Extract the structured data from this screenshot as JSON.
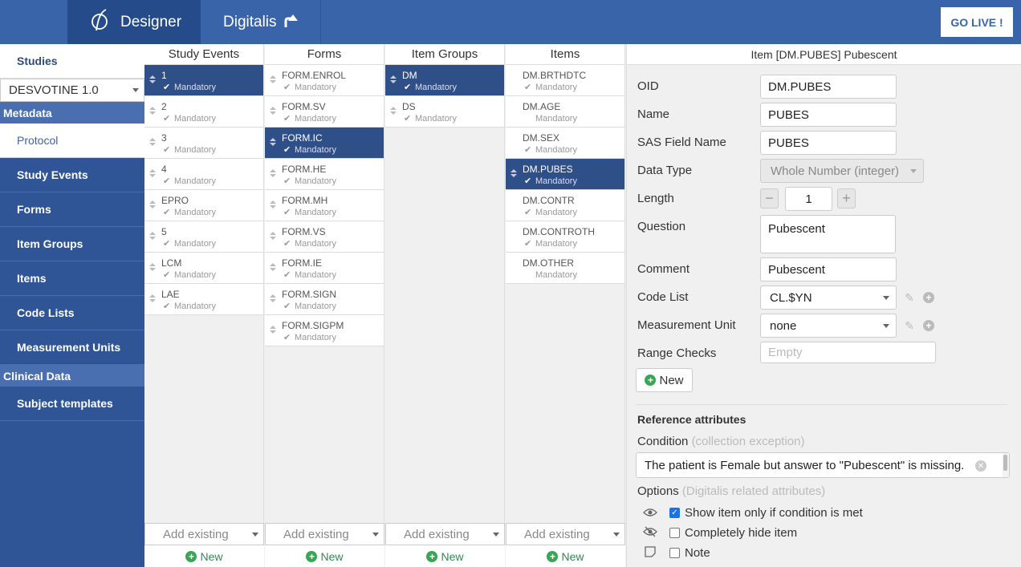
{
  "topbar": {
    "designer_label": "Designer",
    "digitalis_label": "Digitalis",
    "golive_label": "GO LIVE !"
  },
  "sidebar": {
    "studies_label": "Studies",
    "study_select": "DESVOTINE 1.0",
    "metadata_heading": "Metadata",
    "metadata_items": [
      "Protocol",
      "Study Events",
      "Forms",
      "Item Groups",
      "Items",
      "Code Lists",
      "Measurement Units"
    ],
    "clinical_heading": "Clinical Data",
    "clinical_items": [
      "Subject templates"
    ]
  },
  "columns": [
    {
      "title": "Study Events",
      "rows": [
        {
          "name": "1",
          "sub": "Mandatory",
          "selected": true
        },
        {
          "name": "2",
          "sub": "Mandatory"
        },
        {
          "name": "3",
          "sub": "Mandatory"
        },
        {
          "name": "4",
          "sub": "Mandatory"
        },
        {
          "name": "EPRO",
          "sub": "Mandatory"
        },
        {
          "name": "5",
          "sub": "Mandatory"
        },
        {
          "name": "LCM",
          "sub": "Mandatory"
        },
        {
          "name": "LAE",
          "sub": "Mandatory"
        }
      ],
      "add_existing": "Add existing",
      "new_label": "New"
    },
    {
      "title": "Forms",
      "rows": [
        {
          "name": "FORM.ENROL",
          "sub": "Mandatory"
        },
        {
          "name": "FORM.SV",
          "sub": "Mandatory"
        },
        {
          "name": "FORM.IC",
          "sub": "Mandatory",
          "selected": true
        },
        {
          "name": "FORM.HE",
          "sub": "Mandatory"
        },
        {
          "name": "FORM.MH",
          "sub": "Mandatory"
        },
        {
          "name": "FORM.VS",
          "sub": "Mandatory"
        },
        {
          "name": "FORM.IE",
          "sub": "Mandatory"
        },
        {
          "name": "FORM.SIGN",
          "sub": "Mandatory"
        },
        {
          "name": "FORM.SIGPM",
          "sub": "Mandatory"
        }
      ],
      "add_existing": "Add existing",
      "new_label": "New"
    },
    {
      "title": "Item Groups",
      "rows": [
        {
          "name": "DM",
          "sub": "Mandatory",
          "selected": true
        },
        {
          "name": "DS",
          "sub": "Mandatory"
        }
      ],
      "add_existing": "Add existing",
      "new_label": "New"
    },
    {
      "title": "Items",
      "rows": [
        {
          "name": "DM.BRTHDTC",
          "sub": "Mandatory",
          "check": true
        },
        {
          "name": "DM.AGE",
          "sub": "Mandatory",
          "check": false
        },
        {
          "name": "DM.SEX",
          "sub": "Mandatory",
          "check": true
        },
        {
          "name": "DM.PUBES",
          "sub": "Mandatory",
          "selected": true,
          "check": true
        },
        {
          "name": "DM.CONTR",
          "sub": "Mandatory",
          "check": true
        },
        {
          "name": "DM.CONTROTH",
          "sub": "Mandatory",
          "check": true
        },
        {
          "name": "DM.OTHER",
          "sub": "Mandatory",
          "check": false
        }
      ],
      "add_existing": "Add existing",
      "new_label": "New"
    }
  ],
  "panel": {
    "title": "Item [DM.PUBES] Pubescent",
    "oid_label": "OID",
    "oid_value": "DM.PUBES",
    "name_label": "Name",
    "name_value": "PUBES",
    "sas_label": "SAS Field Name",
    "sas_value": "PUBES",
    "datatype_label": "Data Type",
    "datatype_value": "Whole Number (integer)",
    "length_label": "Length",
    "length_value": "1",
    "question_label": "Question",
    "question_value": "Pubescent",
    "comment_label": "Comment",
    "comment_value": "Pubescent",
    "codelist_label": "Code List",
    "codelist_value": "CL.$YN",
    "unit_label": "Measurement Unit",
    "unit_value": "none",
    "range_label": "Range Checks",
    "range_placeholder": "Empty",
    "new_label": "New",
    "ref_heading": "Reference attributes",
    "condition_label": "Condition",
    "condition_hint": "(collection exception)",
    "condition_value": "The patient is Female but answer to \"Pubescent\" is missing.",
    "options_label": "Options",
    "options_hint": "(Digitalis related attributes)",
    "options": [
      {
        "label": "Show item only if condition is met",
        "checked": true,
        "icon": "eye-icon"
      },
      {
        "label": "Completely hide item",
        "checked": false,
        "icon": "eye-slash-icon"
      },
      {
        "label": "Note",
        "checked": false,
        "icon": "note-icon"
      }
    ],
    "colors": {
      "accent": "#3a64a9",
      "selected": "#2f4f89",
      "green": "#3aa655"
    }
  }
}
